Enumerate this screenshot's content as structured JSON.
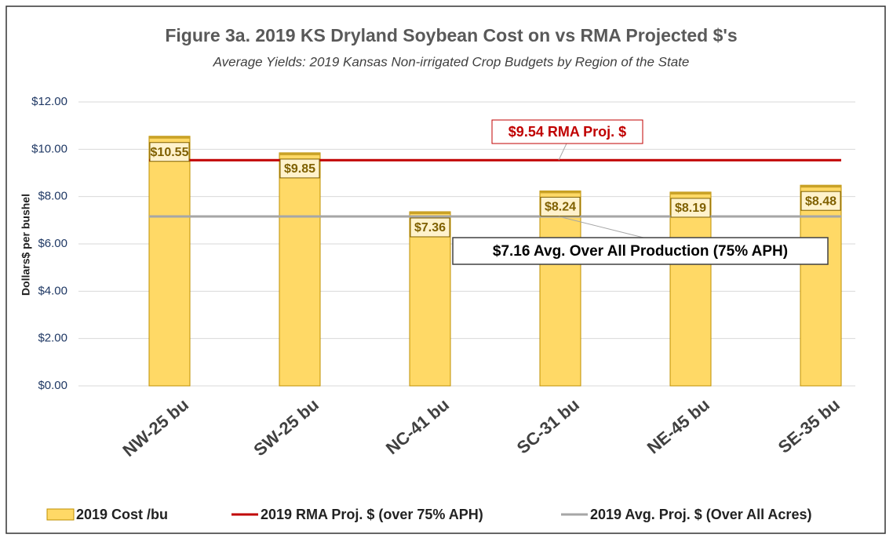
{
  "chart_data": {
    "type": "bar",
    "title": "Figure 3a. 2019 KS Dryland Soybean Cost on vs RMA Projected $'s",
    "subtitle": "Average Yields: 2019 Kansas Non-irrigated Crop Budgets by Region of the State",
    "y_label": "Dollars$ per bushel",
    "categories": [
      "NW-25 bu",
      "SW-25 bu",
      "NC-41 bu",
      "SC-31 bu",
      "NE-45 bu",
      "SE-35 bu"
    ],
    "series": [
      {
        "name": "2019 Cost /bu",
        "type": "bar",
        "color": "#ffd966",
        "values": [
          10.55,
          9.85,
          7.36,
          8.24,
          8.19,
          8.48
        ],
        "value_labels": [
          "$10.55",
          "$9.85",
          "$7.36",
          "$8.24",
          "$8.19",
          "$8.48"
        ]
      },
      {
        "name": "2019 RMA Proj. $ (over 75% APH)",
        "type": "line",
        "color": "#c00000",
        "values": [
          9.54,
          9.54,
          9.54,
          9.54,
          9.54,
          9.54
        ]
      },
      {
        "name": "2019 Avg. Proj. $ (Over All Acres)",
        "type": "line",
        "color": "#a6a6a6",
        "values": [
          7.16,
          7.16,
          7.16,
          7.16,
          7.16,
          7.16
        ]
      }
    ],
    "annotations": [
      "$9.54 RMA Proj. $",
      "$7.16 Avg. Over All Production (75% APH)"
    ],
    "ylim": [
      0,
      12
    ],
    "yticks": [
      {
        "value": 0,
        "label": "$0.00"
      },
      {
        "value": 2,
        "label": "$2.00"
      },
      {
        "value": 4,
        "label": "$4.00"
      },
      {
        "value": 6,
        "label": "$6.00"
      },
      {
        "value": 8,
        "label": "$8.00"
      },
      {
        "value": 10,
        "label": "$10.00"
      },
      {
        "value": 12,
        "label": "$12.00"
      }
    ],
    "grid": true,
    "legend": "bottom"
  }
}
